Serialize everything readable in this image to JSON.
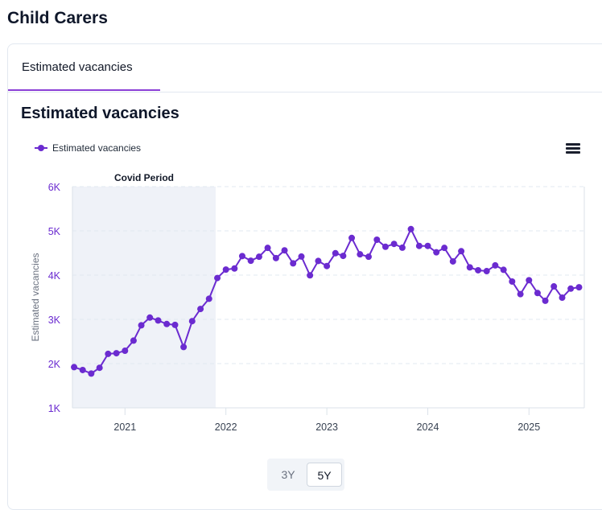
{
  "page": {
    "title": "Child Carers"
  },
  "tabs": [
    {
      "label": "Estimated vacancies",
      "active": true
    }
  ],
  "colors": {
    "accent": "#8b3fd6",
    "series": "#6b2bd0",
    "covid_band": "#eff2f8",
    "grid": "#e2e8f0"
  },
  "menu": {
    "icon": "hamburger-menu-icon"
  },
  "range_selector": {
    "options": [
      "3Y",
      "5Y"
    ],
    "selected": "5Y"
  },
  "chart_data": {
    "type": "line",
    "title": "Estimated vacancies",
    "xlabel": "",
    "ylabel": "Estimated vacancies",
    "ylim": [
      1000,
      6000
    ],
    "yticks": [
      1000,
      2000,
      3000,
      4000,
      5000,
      6000
    ],
    "ytick_labels": [
      "1K",
      "2K",
      "3K",
      "4K",
      "5K",
      "6K"
    ],
    "xrange": [
      "2020-06-25",
      "2025-07-20"
    ],
    "xticks": [
      "2021-01",
      "2022-01",
      "2023-01",
      "2024-01",
      "2025-01"
    ],
    "xtick_labels": [
      "2021",
      "2022",
      "2023",
      "2024",
      "2025"
    ],
    "grid": true,
    "legend": {
      "position": "top-left",
      "entries": [
        "Estimated vacancies"
      ]
    },
    "annotations": [
      {
        "type": "band",
        "label": "Covid Period",
        "from": "2020-06-25",
        "to": "2021-11-25"
      }
    ],
    "x": [
      "2020-07",
      "2020-08",
      "2020-09",
      "2020-10",
      "2020-11",
      "2020-12",
      "2021-01",
      "2021-02",
      "2021-03",
      "2021-04",
      "2021-05",
      "2021-06",
      "2021-07",
      "2021-08",
      "2021-09",
      "2021-10",
      "2021-11",
      "2021-12",
      "2022-01",
      "2022-02",
      "2022-03",
      "2022-04",
      "2022-05",
      "2022-06",
      "2022-07",
      "2022-08",
      "2022-09",
      "2022-10",
      "2022-11",
      "2022-12",
      "2023-01",
      "2023-02",
      "2023-03",
      "2023-04",
      "2023-05",
      "2023-06",
      "2023-07",
      "2023-08",
      "2023-09",
      "2023-10",
      "2023-11",
      "2023-12",
      "2024-01",
      "2024-02",
      "2024-03",
      "2024-04",
      "2024-05",
      "2024-06",
      "2024-07",
      "2024-08",
      "2024-09",
      "2024-10",
      "2024-11",
      "2024-12",
      "2025-01",
      "2025-02",
      "2025-03",
      "2025-04",
      "2025-05",
      "2025-06",
      "2025-07"
    ],
    "series": [
      {
        "name": "Estimated vacancies",
        "values": [
          1920,
          1855,
          1775,
          1905,
          2220,
          2235,
          2290,
          2520,
          2865,
          3040,
          2975,
          2895,
          2875,
          2375,
          2960,
          3235,
          3465,
          3935,
          4125,
          4150,
          4430,
          4325,
          4415,
          4615,
          4385,
          4560,
          4265,
          4420,
          3995,
          4320,
          4205,
          4495,
          4435,
          4840,
          4470,
          4415,
          4800,
          4640,
          4705,
          4620,
          5040,
          4660,
          4660,
          4515,
          4615,
          4310,
          4540,
          4175,
          4110,
          4090,
          4220,
          4120,
          3855,
          3570,
          3885,
          3595,
          3420,
          3745,
          3490,
          3695,
          3725
        ]
      }
    ]
  }
}
